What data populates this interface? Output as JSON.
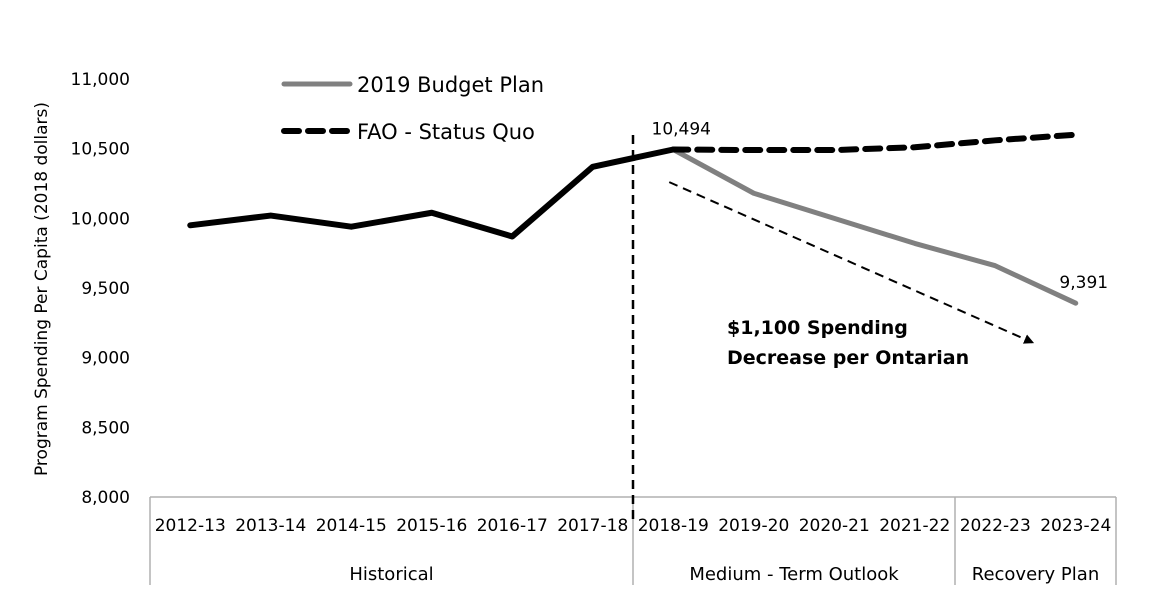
{
  "chart_data": {
    "type": "line",
    "title": "",
    "xlabel": "",
    "ylabel": "Program Spending Per Capita (2018 dollars)",
    "ylim": [
      8000,
      11000
    ],
    "yticks": [
      8000,
      8500,
      9000,
      9500,
      10000,
      10500,
      11000
    ],
    "ytick_labels": [
      "8,000",
      "8,500",
      "9,000",
      "9,500",
      "10,000",
      "10,500",
      "11,000"
    ],
    "grid": false,
    "legend_position": "top-left",
    "categories": [
      "2012-13",
      "2013-14",
      "2014-15",
      "2015-16",
      "2016-17",
      "2017-18",
      "2018-19",
      "2019-20",
      "2020-21",
      "2021-22",
      "2022-23",
      "2023-24"
    ],
    "category_groups": [
      {
        "label": "Historical",
        "start": 0,
        "end": 5
      },
      {
        "label": "Medium - Term Outlook",
        "start": 6,
        "end": 9
      },
      {
        "label": "Recovery Plan",
        "start": 10,
        "end": 11
      }
    ],
    "series": [
      {
        "name": "Historical",
        "in_legend": false,
        "color": "#000000",
        "style": "solid",
        "values": [
          9950,
          10020,
          9940,
          10040,
          9870,
          10370,
          10494,
          null,
          null,
          null,
          null,
          null
        ]
      },
      {
        "name": "2019 Budget Plan",
        "in_legend": true,
        "color": "#808080",
        "style": "solid",
        "values": [
          null,
          null,
          null,
          null,
          null,
          null,
          10494,
          10180,
          10000,
          9820,
          9660,
          9391
        ]
      },
      {
        "name": "FAO - Status Quo",
        "in_legend": true,
        "color": "#000000",
        "style": "dashed",
        "values": [
          null,
          null,
          null,
          null,
          null,
          null,
          10494,
          10490,
          10490,
          10510,
          10560,
          10600
        ]
      }
    ],
    "data_labels": [
      {
        "category": "2018-19",
        "value": 10494,
        "text": "10,494"
      },
      {
        "category": "2023-24",
        "value": 9391,
        "text": "9,391"
      }
    ],
    "divider": {
      "between": [
        "2017-18",
        "2018-19"
      ],
      "style": "dashed"
    },
    "annotation": {
      "lines": [
        "$1,100 Spending",
        "Decrease per Ontarian"
      ],
      "arrow": {
        "from": {
          "category": "2018-19",
          "value": 10260
        },
        "to": {
          "category": "2022-23",
          "value": 9110
        }
      }
    }
  }
}
